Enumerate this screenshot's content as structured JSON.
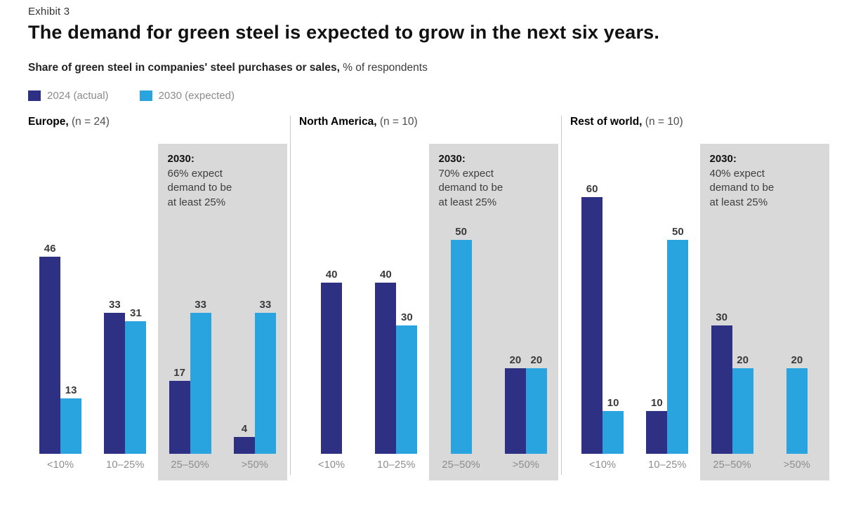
{
  "exhibit_label": "Exhibit 3",
  "title": "The demand for green steel is expected to grow in the next six years.",
  "subtitle_bold": "Share of green steel in companies' steel purchases or sales,",
  "subtitle_regular": " % of respondents",
  "legend": [
    {
      "label": "2024 (actual)",
      "color": "#2e3183"
    },
    {
      "label": "2030 (expected)",
      "color": "#29a4df"
    }
  ],
  "colors": {
    "series_2024": "#2e3183",
    "series_2030": "#29a4df",
    "callout_background": "#d9d9d9",
    "panel_divider": "#c8c8c8",
    "axis_label": "#8c8c8c",
    "value_label": "#3a3a3a"
  },
  "chart_data": {
    "type": "bar",
    "title": "The demand for green steel is expected to grow in the next six years.",
    "subtitle": "Share of green steel in companies' steel purchases or sales, % of respondents",
    "categories": [
      "<10%",
      "10–25%",
      "25–50%",
      ">50%"
    ],
    "ylim": [
      0,
      75
    ],
    "grid": false,
    "legend_position": "top-left",
    "series_names": [
      "2024 (actual)",
      "2030 (expected)"
    ],
    "panels": [
      {
        "region": "Europe,",
        "n_label": "(n = 24)",
        "callout": {
          "title": "2030:",
          "lines": [
            "66% expect",
            "demand to be",
            "at least 25%"
          ]
        },
        "series": [
          {
            "name": "2024 (actual)",
            "values": [
              46,
              33,
              17,
              4
            ]
          },
          {
            "name": "2030 (expected)",
            "values": [
              13,
              31,
              33,
              33
            ]
          }
        ]
      },
      {
        "region": "North America,",
        "n_label": "(n = 10)",
        "callout": {
          "title": "2030:",
          "lines": [
            "70% expect",
            "demand to be",
            "at least 25%"
          ]
        },
        "series": [
          {
            "name": "2024 (actual)",
            "values": [
              40,
              40,
              null,
              20
            ]
          },
          {
            "name": "2030 (expected)",
            "values": [
              null,
              30,
              50,
              20
            ]
          }
        ]
      },
      {
        "region": "Rest of world,",
        "n_label": "(n = 10)",
        "callout": {
          "title": "2030:",
          "lines": [
            "40% expect",
            "demand to be",
            "at least 25%"
          ]
        },
        "series": [
          {
            "name": "2024 (actual)",
            "values": [
              60,
              10,
              30,
              null
            ]
          },
          {
            "name": "2030 (expected)",
            "values": [
              10,
              50,
              20,
              20
            ]
          }
        ]
      }
    ]
  }
}
